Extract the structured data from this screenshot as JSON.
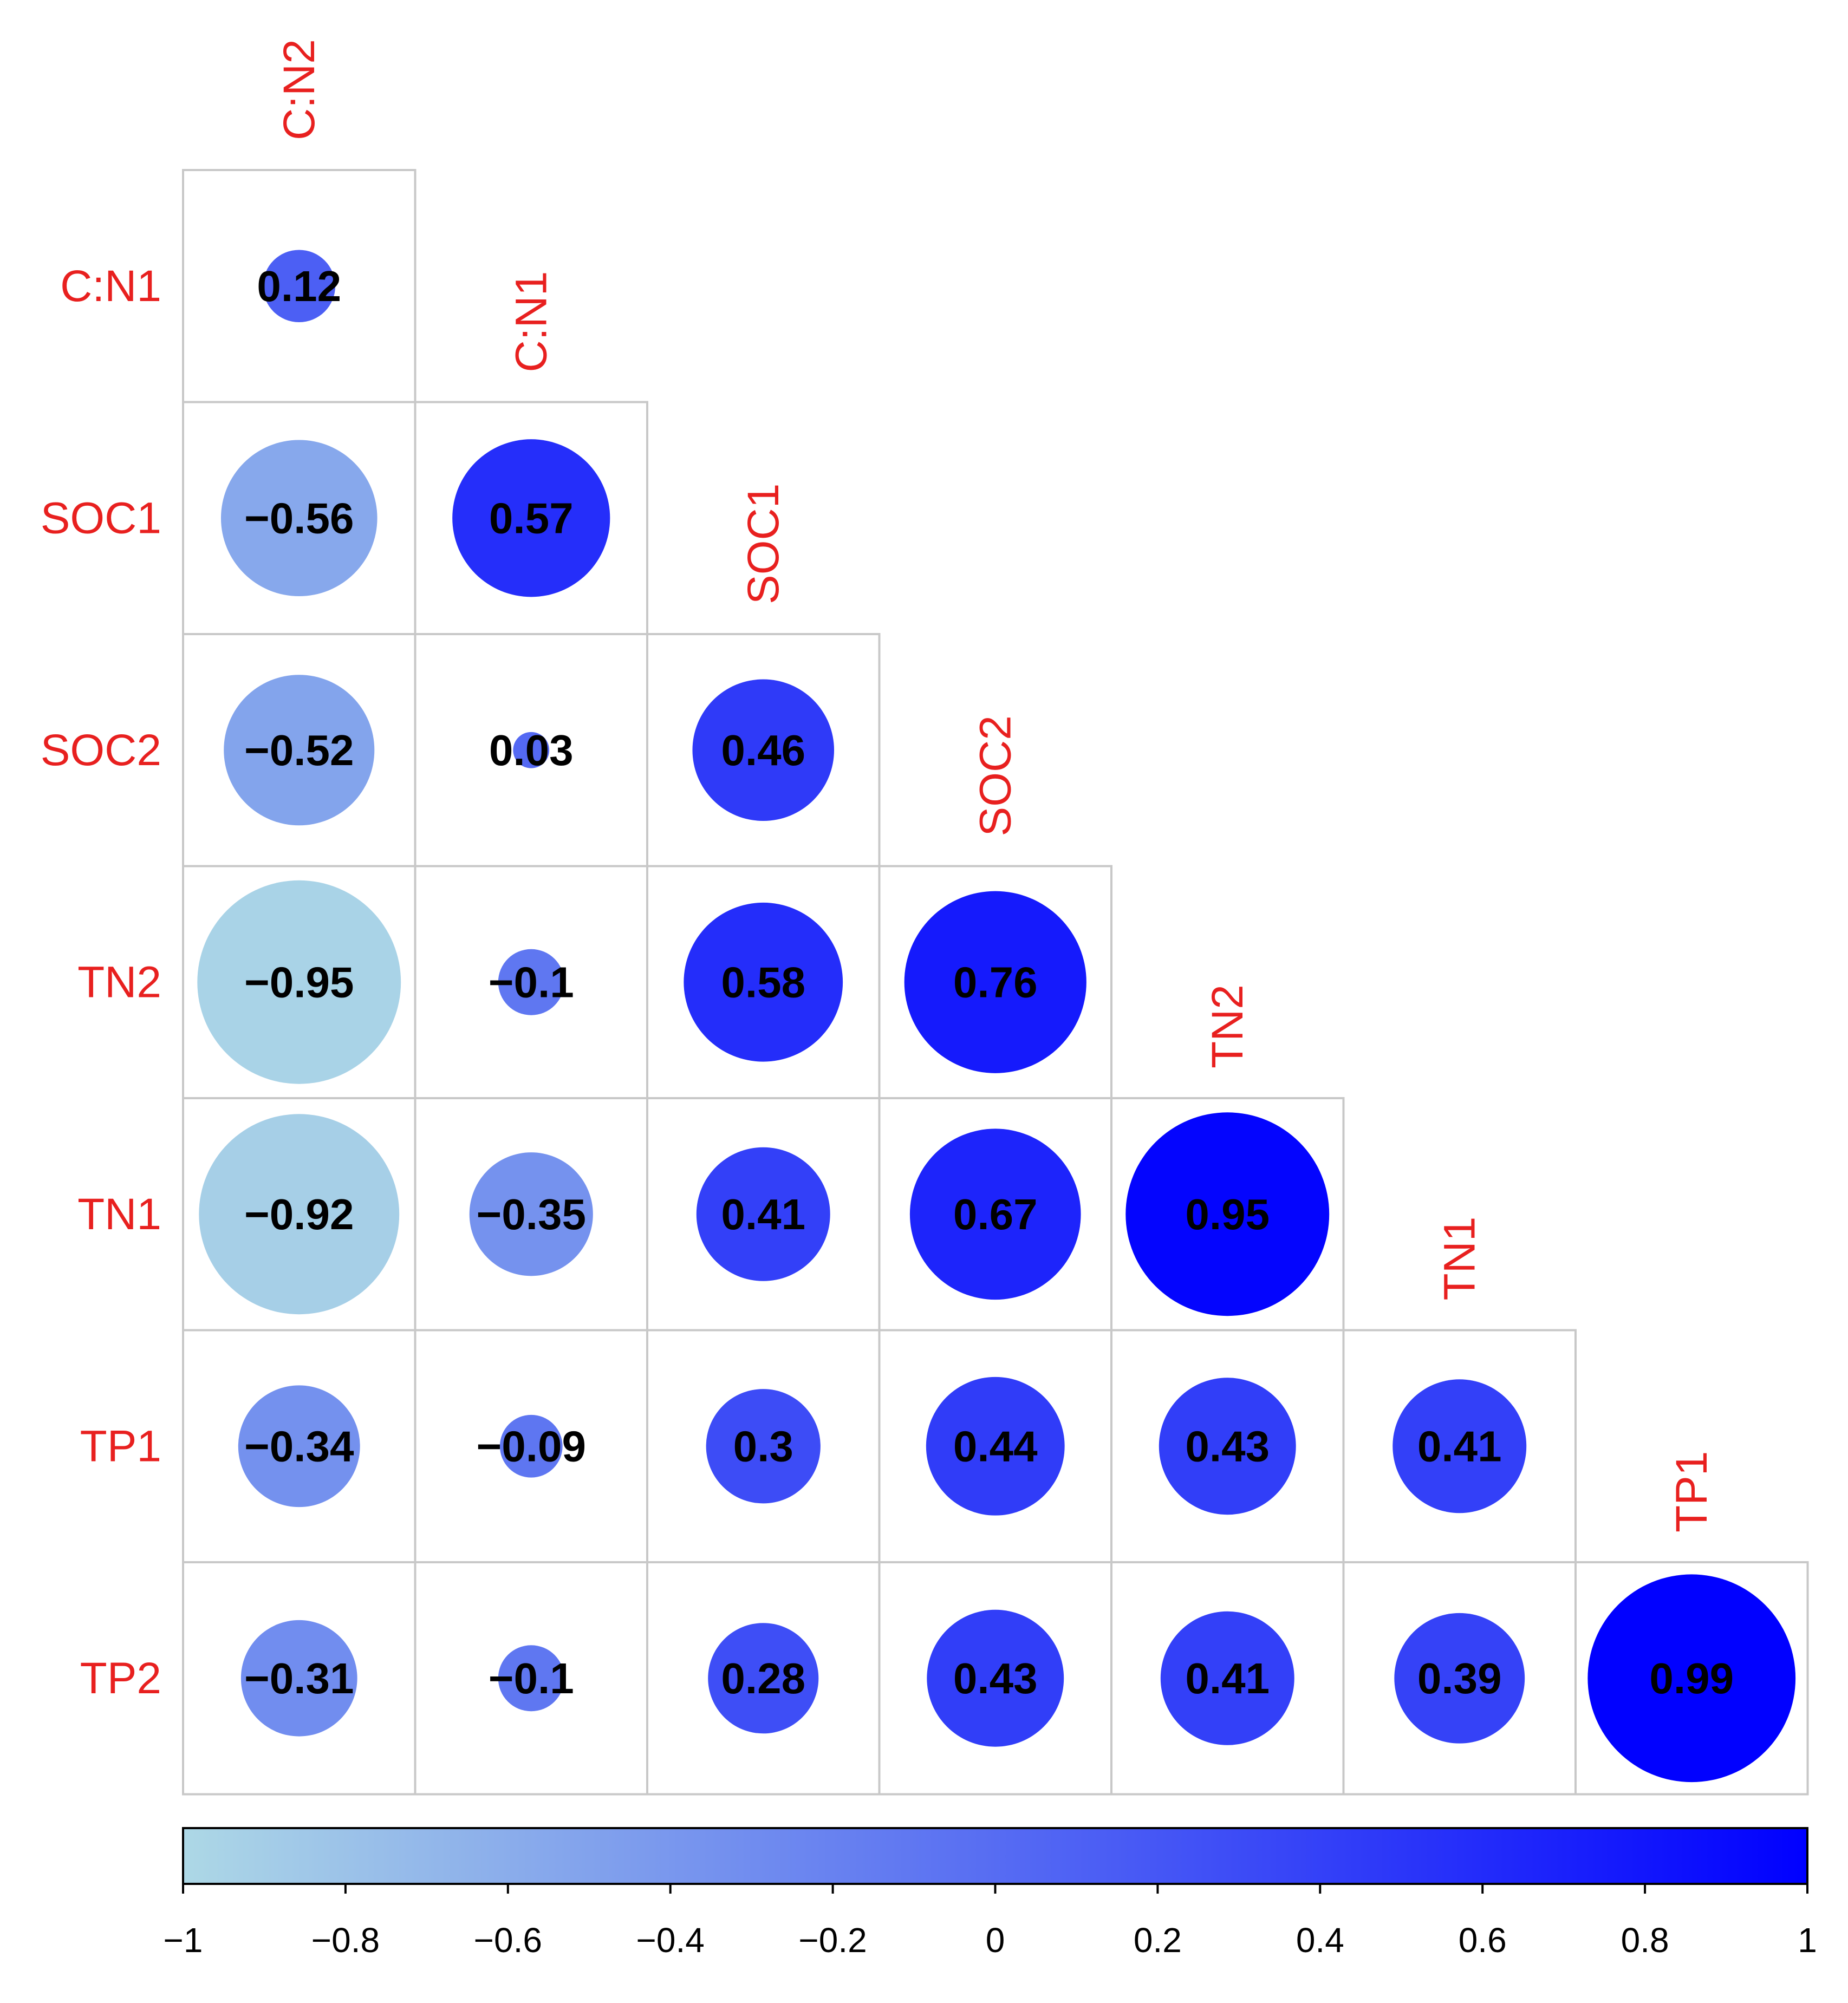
{
  "chart_data": {
    "type": "heatmap",
    "variables": [
      "C:N2",
      "C:N1",
      "SOC1",
      "SOC2",
      "TN2",
      "TN1",
      "TP1",
      "TP2"
    ],
    "row_labels": [
      "C:N1",
      "SOC1",
      "SOC2",
      "TN2",
      "TN1",
      "TP1",
      "TP2"
    ],
    "col_labels": [
      "C:N2",
      "C:N1",
      "SOC1",
      "SOC2",
      "TN2",
      "TN1",
      "TP1"
    ],
    "matrix": [
      [
        0.12
      ],
      [
        -0.56,
        0.57
      ],
      [
        -0.52,
        0.03,
        0.46
      ],
      [
        -0.95,
        -0.1,
        0.58,
        0.76
      ],
      [
        -0.92,
        -0.35,
        0.41,
        0.67,
        0.95
      ],
      [
        -0.34,
        -0.09,
        0.3,
        0.44,
        0.43,
        0.41
      ],
      [
        -0.31,
        -0.1,
        0.28,
        0.43,
        0.41,
        0.39,
        0.99
      ]
    ],
    "value_labels": [
      [
        "0.12"
      ],
      [
        "−0.56",
        "0.57"
      ],
      [
        "−0.52",
        "0.03",
        "0.46"
      ],
      [
        "−0.95",
        "−0.1",
        "0.58",
        "0.76"
      ],
      [
        "−0.92",
        "−0.35",
        "0.41",
        "0.67",
        "0.95"
      ],
      [
        "−0.34",
        "−0.09",
        "0.3",
        "0.44",
        "0.43",
        "0.41"
      ],
      [
        "−0.31",
        "−0.1",
        "0.28",
        "0.43",
        "0.41",
        "0.39",
        "0.99"
      ]
    ],
    "method": "circle",
    "layout": "lower-triangle",
    "legend": {
      "position": "bottom",
      "range": [
        -1,
        1
      ],
      "ticks": [
        -1,
        -0.8,
        -0.6,
        -0.4,
        -0.2,
        0,
        0.2,
        0.4,
        0.6,
        0.8,
        1
      ],
      "tick_labels": [
        "−1",
        "−0.8",
        "−0.6",
        "−0.4",
        "−0.2",
        "0",
        "0.2",
        "0.4",
        "0.6",
        "0.8",
        "1"
      ]
    },
    "colors": {
      "negative_end": "#add8e6",
      "positive_end": "#0000ff",
      "label_color": "#e8201f",
      "grid_color": "#c8c8c8"
    }
  }
}
